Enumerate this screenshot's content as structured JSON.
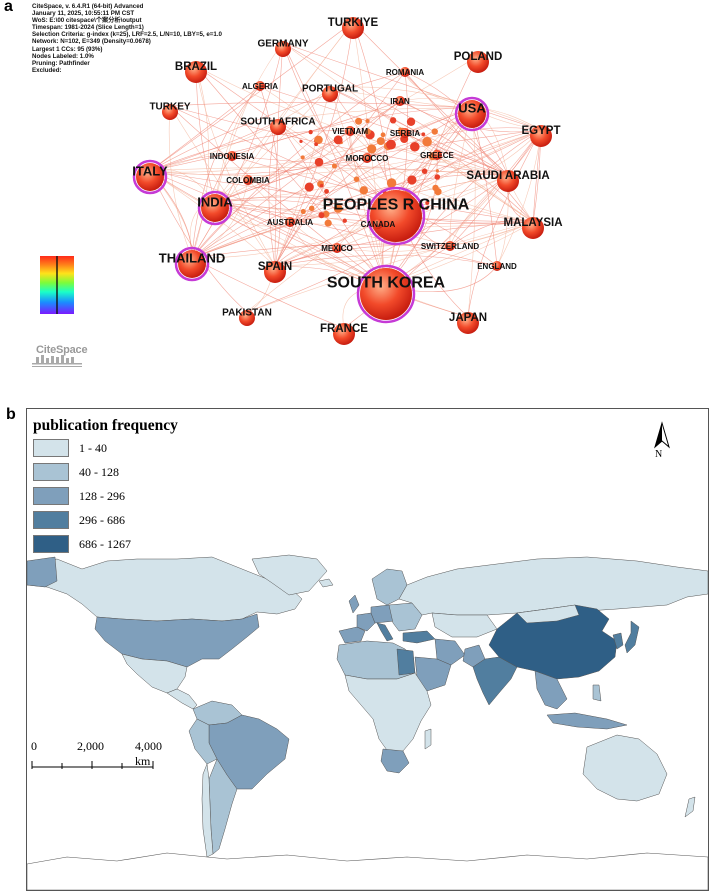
{
  "panel_a": {
    "label": "a",
    "meta_lines": [
      "CiteSpace, v. 6.4.R1 (64-bit) Advanced",
      "January 11, 2025, 10:55:11 PM CST",
      "WoS: E:\\00 citespace\\个案分析\\output",
      "Timespan: 1981-2024 (Slice Length=1)",
      "Selection Criteria: g-index (k=25), LRF=2.5, L/N=10, LBY=5, e=1.0",
      "Network: N=102, E=349 (Density=0.0678)",
      "Largest 1 CCs: 95 (93%)",
      "Nodes Labeled: 1.0%",
      "Pruning: Pathfinder",
      "Excluded:"
    ],
    "logo_text": "CiteSpace",
    "nodes": [
      {
        "label": "TURKIYE",
        "size": "md"
      },
      {
        "label": "GERMANY",
        "size": "sm"
      },
      {
        "label": "POLAND",
        "size": "md"
      },
      {
        "label": "BRAZIL",
        "size": "md"
      },
      {
        "label": "ROMANIA",
        "size": "xs"
      },
      {
        "label": "ALGERIA",
        "size": "xs"
      },
      {
        "label": "PORTUGAL",
        "size": "sm"
      },
      {
        "label": "IRAN",
        "size": "xs"
      },
      {
        "label": "TURKEY",
        "size": "sm"
      },
      {
        "label": "USA",
        "size": "lg"
      },
      {
        "label": "SOUTH AFRICA",
        "size": "sm"
      },
      {
        "label": "VIETNAM",
        "size": "xs"
      },
      {
        "label": "SERBIA",
        "size": "xs"
      },
      {
        "label": "EGYPT",
        "size": "md"
      },
      {
        "label": "INDONESIA",
        "size": "xs"
      },
      {
        "label": "MOROCCO",
        "size": "xs"
      },
      {
        "label": "GREECE",
        "size": "xs"
      },
      {
        "label": "ITALY",
        "size": "lg"
      },
      {
        "label": "SAUDI ARABIA",
        "size": "md"
      },
      {
        "label": "COLOMBIA",
        "size": "xs"
      },
      {
        "label": "INDIA",
        "size": "lg"
      },
      {
        "label": "PEOPLES R CHINA",
        "size": "xl"
      },
      {
        "label": "MALAYSIA",
        "size": "md"
      },
      {
        "label": "AUSTRALIA",
        "size": "xs"
      },
      {
        "label": "CANADA",
        "size": "xs"
      },
      {
        "label": "THAILAND",
        "size": "lg"
      },
      {
        "label": "MEXICO",
        "size": "xs"
      },
      {
        "label": "SWITZERLAND",
        "size": "xs"
      },
      {
        "label": "SPAIN",
        "size": "md"
      },
      {
        "label": "ENGLAND",
        "size": "xs"
      },
      {
        "label": "SOUTH KOREA",
        "size": "xl"
      },
      {
        "label": "PAKISTAN",
        "size": "sm"
      },
      {
        "label": "JAPAN",
        "size": "md"
      },
      {
        "label": "FRANCE",
        "size": "md"
      }
    ]
  },
  "panel_b": {
    "label": "b",
    "legend_title": "publication frequency",
    "legend": [
      {
        "range": "1 - 40",
        "color": "#d3e3ea"
      },
      {
        "range": "40 - 128",
        "color": "#a9c3d4"
      },
      {
        "range": "128 - 296",
        "color": "#7f9fbb"
      },
      {
        "range": "296 - 686",
        "color": "#517e9f"
      },
      {
        "range": "686 - 1267",
        "color": "#2f5f86"
      }
    ],
    "north_label": "N",
    "scale_labels": [
      "0",
      "2,000",
      "4,000 km"
    ],
    "country_classes": {
      "China": "686 - 1267",
      "United States": "128 - 296",
      "Brazil": "128 - 296",
      "India": "128 - 296",
      "South Korea": "128 - 296",
      "Canada": "1 - 40",
      "Russia": "1 - 40",
      "Australia": "1 - 40"
    }
  }
}
